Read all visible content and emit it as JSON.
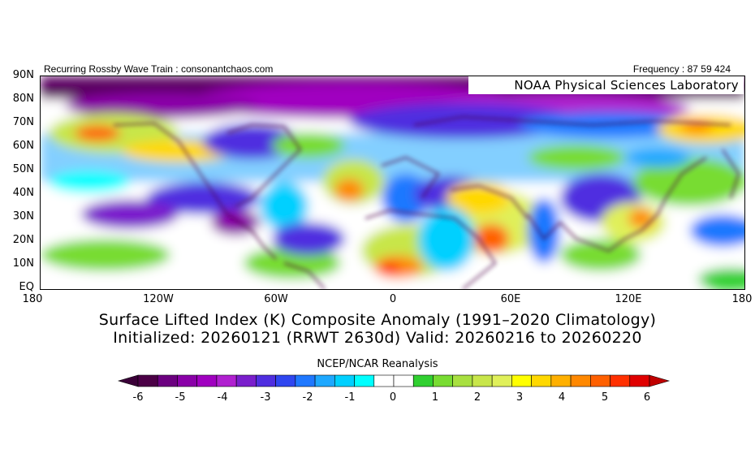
{
  "header": {
    "left_text": "Recurring Rossby Wave Train : consonantchaos.com",
    "right_text": "Frequency : 87 59 424",
    "lab": "NOAA Physical Sciences Laboratory"
  },
  "axes": {
    "y_labels": [
      "90N",
      "80N",
      "70N",
      "60N",
      "50N",
      "40N",
      "30N",
      "20N",
      "10N",
      "EQ"
    ],
    "x_labels": [
      "180",
      "120W",
      "60W",
      "0",
      "60E",
      "120E",
      "180"
    ]
  },
  "titles": {
    "line1": "Surface Lifted Index (K) Composite Anomaly (1991–2020 Climatology)",
    "line2": "Initialized: 20260121 (RRWT 2630d) Valid: 20260216 to 20260220"
  },
  "colorbar": {
    "title": "NCEP/NCAR Reanalysis",
    "labels": [
      "-6",
      "-5",
      "-4",
      "-3",
      "-2",
      "-1",
      "0",
      "1",
      "2",
      "3",
      "4",
      "5",
      "6"
    ],
    "colors": [
      "#4b0046",
      "#6c0080",
      "#8a00a8",
      "#a000c0",
      "#b020d0",
      "#7a1ecc",
      "#4f2ee0",
      "#2f46f0",
      "#1f78ff",
      "#1ea8ff",
      "#00d0ff",
      "#00ffff",
      "#ffffff",
      "#ffffff",
      "#30d030",
      "#78dc32",
      "#a8e040",
      "#c8e64a",
      "#e0f05a",
      "#ffff00",
      "#ffd800",
      "#ffb000",
      "#ff8800",
      "#ff6000",
      "#ff3000",
      "#e00000"
    ],
    "under_color": "#3a0038",
    "over_color": "#c00000"
  }
}
